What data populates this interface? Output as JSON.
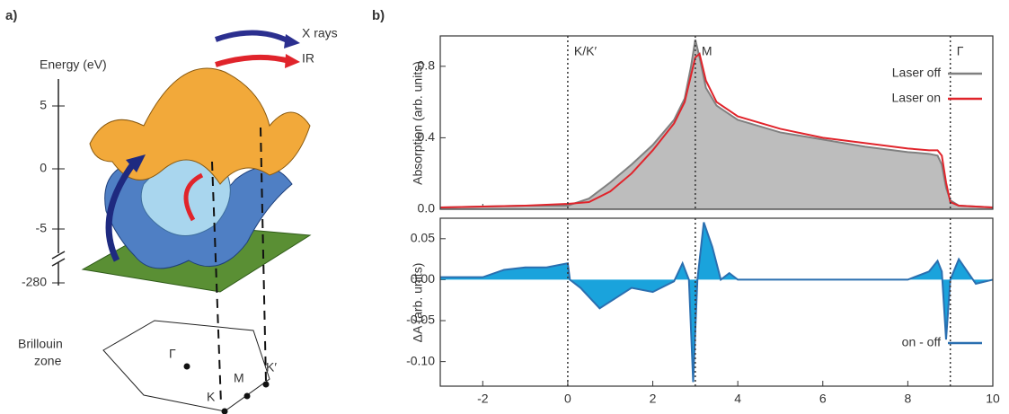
{
  "figure_a": {
    "label": "a)",
    "axis_title": "Energy (eV)",
    "ticks": [
      "5",
      "0",
      "-5",
      "-280"
    ],
    "arrows": [
      "X rays",
      "IR"
    ],
    "zone_label": [
      "Brillouin",
      "zone"
    ],
    "points": [
      "Γ",
      "K",
      "M",
      "K′"
    ]
  },
  "panel_b_label": "b)",
  "chart_data": [
    {
      "type": "line",
      "ylabel": "Absorption (arb. units)",
      "xlim": [
        -3,
        10
      ],
      "ylim": [
        0,
        0.97
      ],
      "yticks": [
        {
          "value": 0,
          "label": "0.0"
        },
        0.4,
        0.8
      ],
      "x": [
        -3,
        -2,
        -1,
        0,
        0.5,
        1,
        1.5,
        2,
        2.5,
        2.75,
        2.9,
        3,
        3.1,
        3.25,
        3.5,
        4,
        5,
        6,
        7,
        8,
        8.5,
        8.7,
        8.8,
        8.9,
        9,
        9.2,
        10
      ],
      "series": [
        {
          "name": "Laser off",
          "color": "#808080",
          "fill": "#bdbdbd",
          "values": [
            0.01,
            0.015,
            0.02,
            0.02,
            0.06,
            0.15,
            0.25,
            0.36,
            0.5,
            0.62,
            0.8,
            0.95,
            0.85,
            0.68,
            0.58,
            0.5,
            0.43,
            0.39,
            0.35,
            0.32,
            0.31,
            0.3,
            0.25,
            0.12,
            0.05,
            0.02,
            0.01
          ]
        },
        {
          "name": "Laser on",
          "color": "#e0242b",
          "values": [
            0.01,
            0.015,
            0.02,
            0.03,
            0.04,
            0.1,
            0.2,
            0.33,
            0.48,
            0.6,
            0.75,
            0.85,
            0.87,
            0.72,
            0.6,
            0.52,
            0.45,
            0.4,
            0.37,
            0.34,
            0.33,
            0.33,
            0.3,
            0.15,
            0.04,
            0.02,
            0.01
          ]
        }
      ],
      "vlines": [
        {
          "x": 0,
          "label": "K/K′"
        },
        {
          "x": 3,
          "label": "M"
        },
        {
          "x": 9,
          "label": "Γ"
        }
      ],
      "legend": "upper right"
    },
    {
      "type": "line",
      "ylabel": "ΔA (arb. units)",
      "xlim": [
        -3,
        10
      ],
      "ylim": [
        -0.13,
        0.075
      ],
      "yticks": [
        {
          "value": -0.1,
          "label": "-0.10"
        },
        {
          "value": -0.05,
          "label": "-0.05"
        },
        {
          "value": 0,
          "label": "0.00"
        },
        {
          "value": 0.05,
          "label": "0.05"
        }
      ],
      "xticks": [
        -2,
        0,
        2,
        4,
        6,
        8,
        10
      ],
      "x": [
        -3,
        -2,
        -1.5,
        -1,
        -0.5,
        -0.2,
        0,
        0.05,
        0.3,
        0.75,
        1.2,
        1.5,
        2,
        2.5,
        2.7,
        2.85,
        2.95,
        3.05,
        3.2,
        3.4,
        3.6,
        3.8,
        4,
        5,
        6,
        7,
        8,
        8.5,
        8.7,
        8.8,
        8.9,
        9,
        9.2,
        9.4,
        9.6,
        10
      ],
      "series": [
        {
          "name": "on - off",
          "color": "#2a6fb0",
          "fill": "#1aa3dc",
          "values": [
            0.003,
            0.003,
            0.012,
            0.015,
            0.015,
            0.018,
            0.02,
            0,
            -0.01,
            -0.035,
            -0.02,
            -0.01,
            -0.015,
            -0.002,
            0.02,
            0,
            -0.125,
            0,
            0.07,
            0.04,
            0,
            0.008,
            0,
            0,
            0,
            0,
            0,
            0.01,
            0.023,
            0.01,
            -0.073,
            0,
            0.025,
            0.01,
            -0.005,
            0
          ]
        }
      ],
      "vlines": [
        0,
        3,
        9
      ],
      "legend": "lower right"
    }
  ]
}
